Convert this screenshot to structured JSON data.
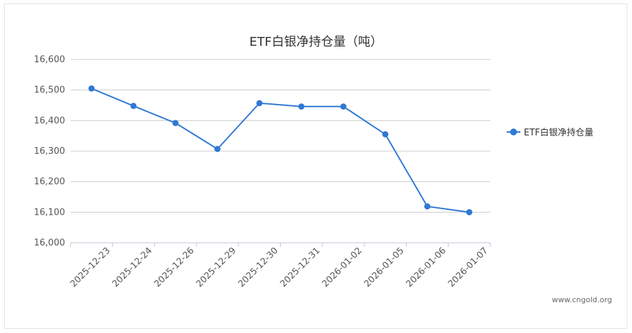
{
  "chart_data": {
    "type": "line",
    "title": "ETF白银净持仓量（吨）",
    "categories": [
      "2025-12-23",
      "2025-12-24",
      "2025-12-26",
      "2025-12-29",
      "2025-12-30",
      "2025-12-31",
      "2026-01-02",
      "2026-01-05",
      "2026-01-06",
      "2026-01-07"
    ],
    "series": [
      {
        "name": "ETF白银净持仓量",
        "color": "#2f78d4",
        "values": [
          16505,
          16448,
          16392,
          16307,
          16457,
          16446,
          16446,
          16355,
          16119,
          16100
        ]
      }
    ],
    "yticks": [
      "16,000",
      "16,100",
      "16,200",
      "16,300",
      "16,400",
      "16,500",
      "16,600"
    ],
    "ylim": [
      16000,
      16600
    ],
    "grid": true,
    "legend_position": "right"
  },
  "watermark": "www.cngold.org"
}
